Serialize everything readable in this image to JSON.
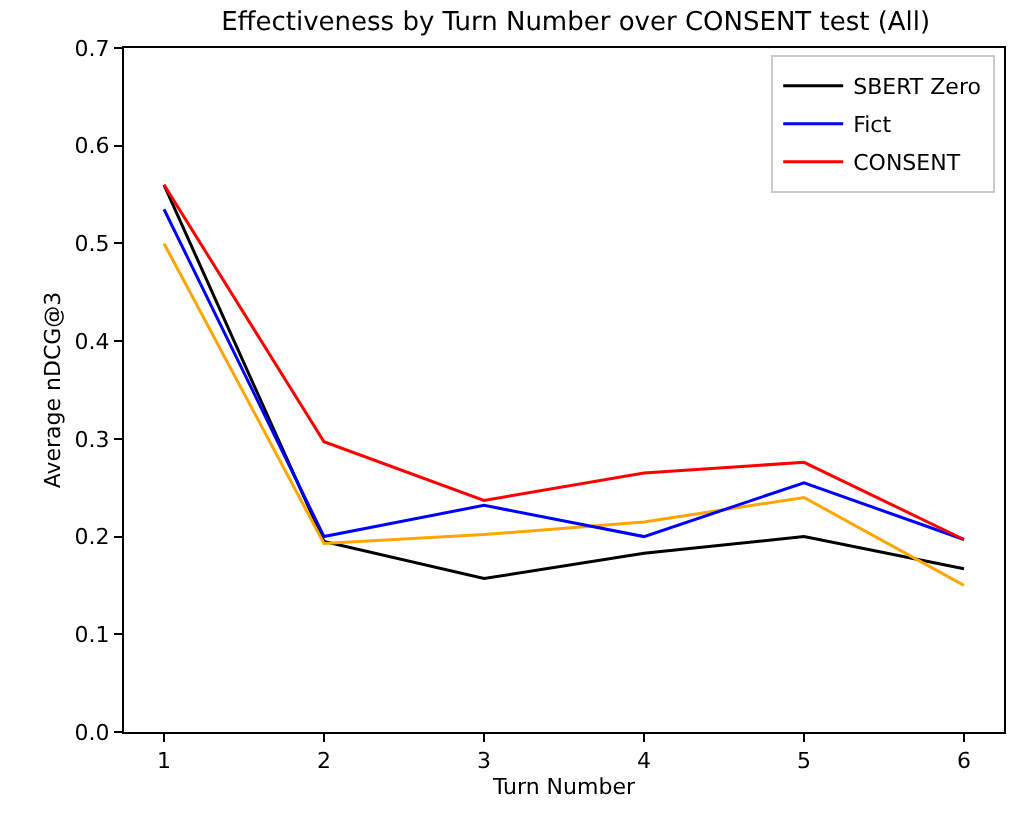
{
  "chart_data": {
    "type": "line",
    "title": "Effectiveness by Turn Number over CONSENT test (All)",
    "xlabel": "Turn Number",
    "ylabel": "Average nDCG@3",
    "x": [
      1,
      2,
      3,
      4,
      5,
      6
    ],
    "series": [
      {
        "name": "SBERT Zero",
        "color": "#000000",
        "values": [
          0.56,
          0.195,
          0.157,
          0.183,
          0.2,
          0.167
        ]
      },
      {
        "color": "#ffa500",
        "values": [
          0.5,
          0.193,
          0.202,
          0.215,
          0.24,
          0.15
        ]
      },
      {
        "name": "Fict",
        "color": "#0000ff",
        "values": [
          0.535,
          0.2,
          0.232,
          0.2,
          0.255,
          0.197
        ]
      },
      {
        "name": "CONSENT",
        "color": "#ff0000",
        "values": [
          0.56,
          0.297,
          0.237,
          0.265,
          0.276,
          0.197
        ]
      }
    ],
    "xlim": [
      0.75,
      6.25
    ],
    "xticks": [
      1,
      2,
      3,
      4,
      5,
      6
    ],
    "ylim": [
      0.0,
      0.7
    ],
    "yticks": [
      {
        "value": 0,
        "label": "0.0"
      },
      0.1,
      0.2,
      0.3,
      0.4,
      0.5,
      0.6,
      0.7
    ],
    "legend": "top right"
  }
}
